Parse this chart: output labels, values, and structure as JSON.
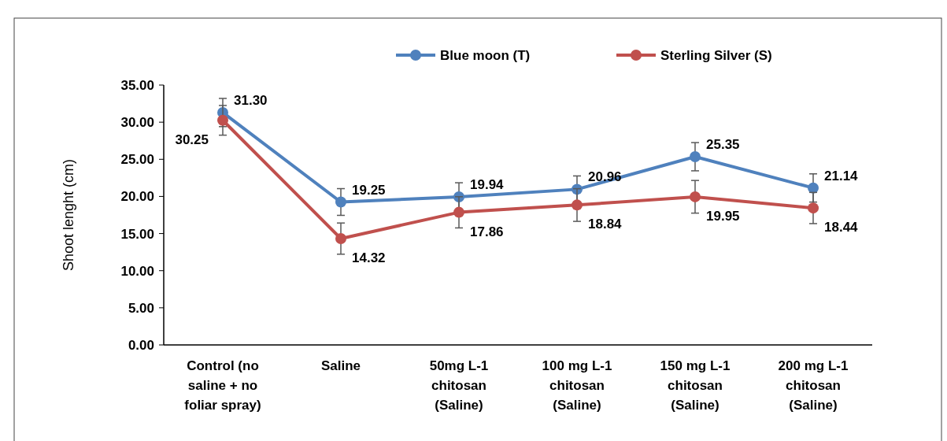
{
  "chart_data": {
    "type": "line",
    "ylabel": "Shoot lenght (cm)",
    "categories": [
      "Control (no saline + no foliar spray)",
      "Saline",
      "50mg L-1 chitosan (Saline)",
      "100 mg L-1 chitosan (Saline)",
      "150 mg L-1 chitosan (Saline)",
      "200 mg L-1 chitosan (Saline)"
    ],
    "series": [
      {
        "name": "Blue moon (T)",
        "color": "#4f81bd",
        "values": [
          31.3,
          19.25,
          19.94,
          20.96,
          25.35,
          21.14
        ],
        "value_labels": [
          "31.30",
          "19.25",
          "19.94",
          "20.96",
          "25.35",
          "21.14"
        ],
        "errors": [
          1.9,
          1.8,
          1.9,
          1.8,
          1.9,
          1.9
        ]
      },
      {
        "name": "Sterling Silver (S)",
        "color": "#c0504d",
        "values": [
          30.25,
          14.32,
          17.86,
          18.84,
          19.95,
          18.44
        ],
        "value_labels": [
          "30.25",
          "14.32",
          "17.86",
          "18.84",
          "19.95",
          "18.44"
        ],
        "errors": [
          2.0,
          2.1,
          2.1,
          2.2,
          2.2,
          2.1
        ]
      }
    ],
    "ylim": [
      0,
      35
    ],
    "yticks": [
      {
        "value": 0,
        "label": "0.00"
      },
      {
        "value": 5,
        "label": "5.00"
      },
      {
        "value": 10,
        "label": "10.00"
      },
      {
        "value": 15,
        "label": "15.00"
      },
      {
        "value": 20,
        "label": "20.00"
      },
      {
        "value": 25,
        "label": "25.00"
      },
      {
        "value": 30,
        "label": "30.00"
      },
      {
        "value": 35,
        "label": "35.00"
      }
    ],
    "grid": false,
    "legend": "top",
    "marker": "circle",
    "line_style": "solid"
  }
}
